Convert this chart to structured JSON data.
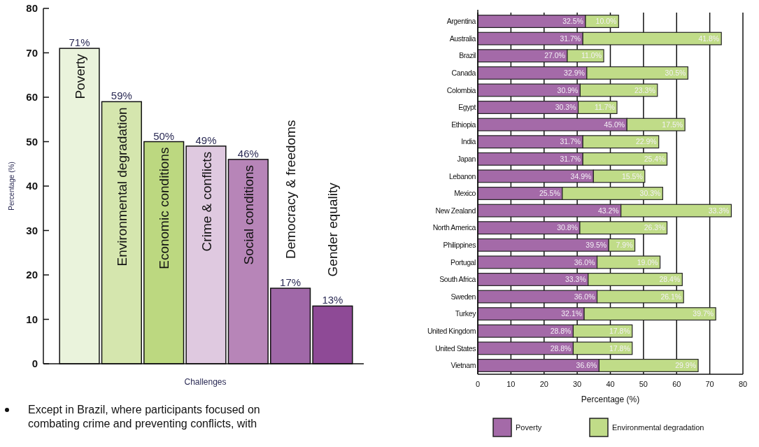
{
  "chart_data": [
    {
      "type": "bar",
      "xlabel": "Challenges",
      "ylabel": "Percentage (%)",
      "categories": [
        "Poverty",
        "Environmental degradation",
        "Economic conditions",
        "Crime & conflicts",
        "Social conditions",
        "Democracy & freedoms",
        "Gender equality"
      ],
      "values": [
        71,
        59,
        50,
        49,
        46,
        17,
        13
      ],
      "colors": [
        "#eaf3dc",
        "#d5e6ae",
        "#bcd880",
        "#dfc9e0",
        "#b785b8",
        "#a068a8",
        "#8e4a96"
      ],
      "value_labels": [
        "71%",
        "59%",
        "50%",
        "49%",
        "46%",
        "17%",
        "13%"
      ],
      "ylim": [
        0,
        80
      ],
      "yticks": [
        0,
        10,
        20,
        30,
        40,
        50,
        60,
        70,
        80
      ],
      "annotations": [
        "Except in Brazil, where participants focused on combating crime and preventing conflicts, with"
      ]
    },
    {
      "type": "bar",
      "orientation": "horizontal",
      "stacked": true,
      "xlabel": "Percentage (%)",
      "grid": "x",
      "legend": "bottom",
      "categories": [
        "Argentina",
        "Australia",
        "Brazil",
        "Canada",
        "Colombia",
        "Egypt",
        "Ethiopia",
        "India",
        "Japan",
        "Lebanon",
        "Mexico",
        "New Zealand",
        "North America",
        "Philippines",
        "Portugal",
        "South Africa",
        "Sweden",
        "Turkey",
        "United Kingdom",
        "United States",
        "Vietnam"
      ],
      "series": [
        {
          "name": "Poverty",
          "color": "#a46aa8",
          "values": [
            32.5,
            31.7,
            27.0,
            32.9,
            30.9,
            30.3,
            45.0,
            31.7,
            31.7,
            34.9,
            25.5,
            43.2,
            30.8,
            39.5,
            36.0,
            33.3,
            36.0,
            32.1,
            28.8,
            28.8,
            36.6
          ],
          "value_labels": [
            "32.5%",
            "31.7%",
            "27.0%",
            "32.9%",
            "30.9%",
            "30.3%",
            "45.0%",
            "31.7%",
            "31.7%",
            "34.9%",
            "25.5%",
            "43.2%",
            "30.8%",
            "39.5%",
            "36.0%",
            "33.3%",
            "36.0%",
            "32.1%",
            "28.8%",
            "28.8%",
            "36.6%"
          ]
        },
        {
          "name": "Environmental degradation",
          "color": "#c0dc88",
          "values": [
            10.0,
            41.8,
            11.0,
            30.5,
            23.3,
            11.7,
            17.5,
            22.9,
            25.4,
            15.5,
            30.3,
            33.3,
            26.3,
            7.9,
            19.0,
            28.4,
            26.1,
            39.7,
            17.8,
            17.8,
            29.9
          ],
          "value_labels": [
            "10.0%",
            "41.8%",
            "11.0%",
            "30.5%",
            "23.3%",
            "11.7%",
            "17.5%",
            "22.9%",
            "25.4%",
            "15.5%",
            "30.3%",
            "33.3%",
            "26.3%",
            "7.9%",
            "19.0%",
            "28.4%",
            "26.1%",
            "39.7%",
            "17.8%",
            "17.8%",
            "29.9%"
          ]
        }
      ],
      "xlim": [
        0,
        80
      ],
      "xticks": [
        0,
        10,
        20,
        30,
        40,
        50,
        60,
        70,
        80
      ]
    }
  ]
}
